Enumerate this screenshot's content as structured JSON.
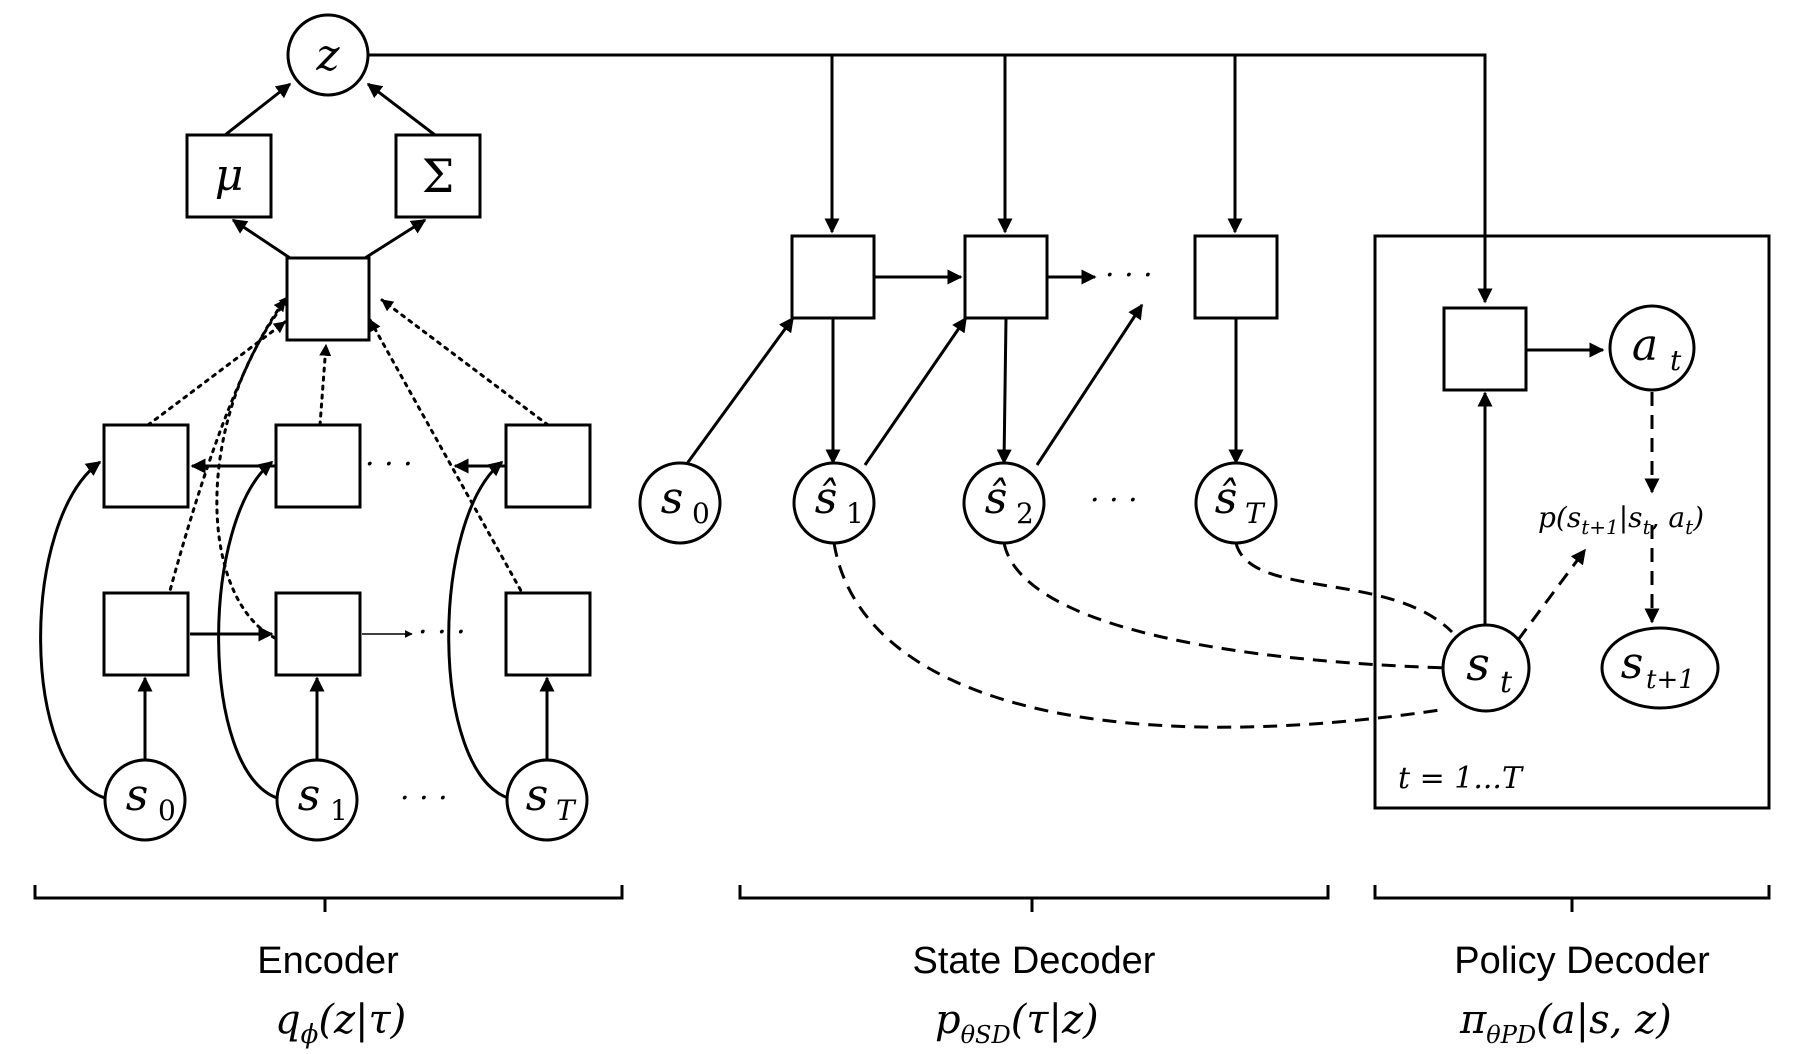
{
  "encoder": {
    "z": "z",
    "mu": "μ",
    "sigma": "Σ",
    "states": {
      "s0": "s",
      "s0_sub": "0",
      "s1": "s",
      "s1_sub": "1",
      "sT": "s",
      "sT_sub": "T"
    },
    "ellipsis": "· · ·",
    "title": "Encoder",
    "formula": "q",
    "formula_sub": "ϕ",
    "formula_rest": "(z|τ)"
  },
  "state_decoder": {
    "s0": "s",
    "s0_sub": "0",
    "sh1": "ŝ",
    "sh1_sub": "1",
    "sh2": "ŝ",
    "sh2_sub": "2",
    "shT": "ŝ",
    "shT_sub": "T",
    "ellipsis": "· · ·",
    "title": "State Decoder",
    "formula": "p",
    "formula_sub": "θSD",
    "formula_rest": "(τ|z)"
  },
  "policy_decoder": {
    "at": "a",
    "at_sub": "t",
    "st": "s",
    "st_sub": "t",
    "st1": "s",
    "st1_sub": "t+1",
    "dynamics": "p(s",
    "dynamics_sub": "t+1",
    "dynamics_rest": "|s",
    "dynamics_sub2": "t",
    "dynamics_rest2": ", a",
    "dynamics_sub3": "t",
    "dynamics_end": ")",
    "plate": "t = 1...T",
    "title": "Policy Decoder",
    "formula": "π",
    "formula_sub": "θPD",
    "formula_rest": "(a|s, z)"
  }
}
